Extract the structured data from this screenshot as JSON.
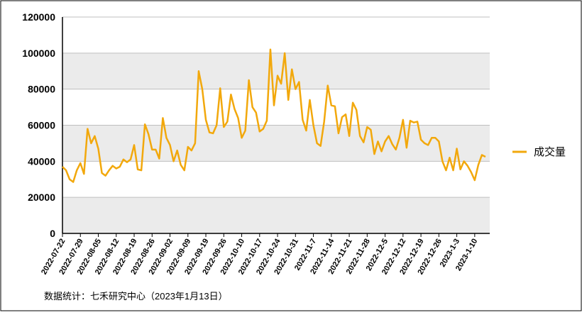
{
  "chart_data": {
    "type": "line",
    "categories": [
      "2022-07-22",
      null,
      null,
      null,
      null,
      "2022-07-29",
      null,
      null,
      null,
      null,
      "2022-08-05",
      null,
      null,
      null,
      null,
      "2022-08-12",
      null,
      null,
      null,
      null,
      "2022-08-19",
      null,
      null,
      null,
      null,
      "2022-08-26",
      null,
      null,
      null,
      null,
      "2022-09-02",
      null,
      null,
      null,
      null,
      "2022-09-09",
      null,
      null,
      null,
      null,
      "2022-09-19",
      null,
      null,
      null,
      null,
      "2022-09-26",
      null,
      null,
      null,
      null,
      "2022-10-10",
      null,
      null,
      null,
      null,
      "2022-10-17",
      null,
      null,
      null,
      null,
      "2022-10-24",
      null,
      null,
      null,
      null,
      "2022-10-31",
      null,
      null,
      null,
      null,
      "2022-11-7",
      null,
      null,
      null,
      null,
      "2022-11-14",
      null,
      null,
      null,
      null,
      "2022-11-21",
      null,
      null,
      null,
      null,
      "2022-11-28",
      null,
      null,
      null,
      null,
      "2022-12-5",
      null,
      null,
      null,
      null,
      "2022-12-12",
      null,
      null,
      null,
      null,
      "2022-12-19",
      null,
      null,
      null,
      null,
      "2022-12-26",
      null,
      null,
      null,
      null,
      "2023-1-3",
      null,
      null,
      null,
      null,
      "2023-1-10",
      null,
      null,
      null
    ],
    "series": [
      {
        "name": "成交量",
        "color": "#f2a80c",
        "values": [
          37000,
          35000,
          30000,
          28500,
          35000,
          39000,
          33000,
          58000,
          50000,
          54000,
          47000,
          33500,
          32000,
          35000,
          37500,
          36000,
          37000,
          41000,
          39500,
          41000,
          49000,
          35500,
          35000,
          60500,
          55000,
          46500,
          46500,
          41500,
          64000,
          53000,
          49000,
          40000,
          46000,
          38000,
          35000,
          48000,
          46000,
          50000,
          90000,
          80000,
          63000,
          56000,
          55500,
          60000,
          80500,
          59000,
          62000,
          77000,
          69000,
          64000,
          53000,
          57000,
          85000,
          70000,
          67000,
          56500,
          58000,
          62500,
          102000,
          71000,
          87500,
          83000,
          100000,
          74000,
          91000,
          80000,
          84000,
          63000,
          57000,
          74000,
          60000,
          50000,
          48500,
          62000,
          82000,
          71000,
          70500,
          55500,
          64500,
          66000,
          54000,
          72500,
          68500,
          54000,
          50500,
          59000,
          57500,
          44000,
          51000,
          45500,
          51000,
          54000,
          49500,
          46500,
          53000,
          63000,
          47500,
          62500,
          61500,
          62000,
          52000,
          50000,
          49000,
          53000,
          53000,
          51000,
          40000,
          35000,
          42000,
          35000,
          47000,
          35500,
          40000,
          37500,
          34000,
          29500,
          38000,
          43500,
          42500
        ]
      }
    ],
    "ylim": [
      0,
      120000
    ],
    "yticks": [
      0,
      20000,
      40000,
      60000,
      80000,
      100000,
      120000
    ],
    "grid": true,
    "legend": "right",
    "footnote": "数据统计：七禾研究中心（2023年1月13日）"
  }
}
